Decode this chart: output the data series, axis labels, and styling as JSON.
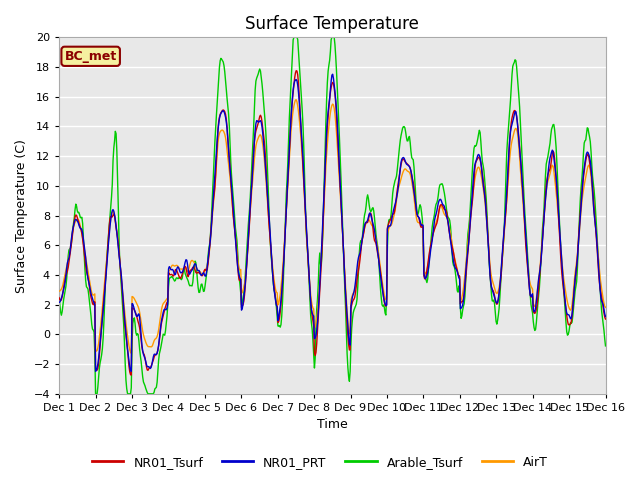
{
  "title": "Surface Temperature",
  "xlabel": "Time",
  "ylabel": "Surface Temperature (C)",
  "ylim": [
    -4,
    20
  ],
  "yticks": [
    -4,
    -2,
    0,
    2,
    4,
    6,
    8,
    10,
    12,
    14,
    16,
    18,
    20
  ],
  "plot_bg_color": "#e8e8e8",
  "annotation_text": "BC_met",
  "annotation_bg": "#f5f0a0",
  "annotation_border": "#8b0000",
  "line_colors": {
    "NR01_Tsurf": "#cc0000",
    "NR01_PRT": "#0000cc",
    "Arable_Tsurf": "#00cc00",
    "AirT": "#ff9900"
  },
  "line_width": 1.0,
  "legend_colors": [
    "#cc0000",
    "#0000cc",
    "#00cc00",
    "#ff9900"
  ],
  "legend_labels": [
    "NR01_Tsurf",
    "NR01_PRT",
    "Arable_Tsurf",
    "AirT"
  ],
  "x_tick_labels": [
    "Dec 1",
    "Dec 2",
    "Dec 3",
    "Dec 4",
    "Dec 5",
    "Dec 6",
    "Dec 7",
    "Dec 8",
    "Dec 9",
    "Dec 10",
    "Dec 11",
    "Dec 12",
    "Dec 13",
    "Dec 14",
    "Dec 15",
    "Dec 16"
  ],
  "n_days": 15,
  "pts_per_day": 48
}
